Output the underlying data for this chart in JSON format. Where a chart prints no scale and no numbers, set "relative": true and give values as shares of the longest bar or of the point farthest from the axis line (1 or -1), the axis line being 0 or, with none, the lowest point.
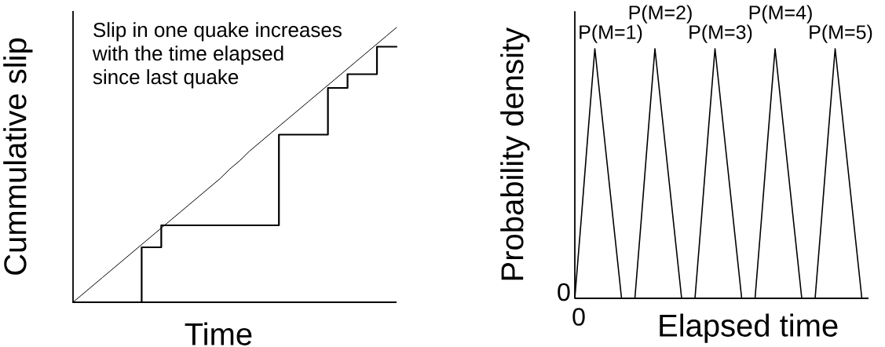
{
  "chart_data": [
    {
      "type": "line",
      "relative": true,
      "xlabel": "Time",
      "ylabel": "Cummulative slip",
      "annotations": [
        "Slip in one quake increases",
        "with the time elapsed",
        "since last quake"
      ],
      "categories": [
        null,
        null,
        null,
        null,
        null,
        null,
        null,
        null,
        null,
        null,
        null,
        null,
        null,
        null,
        null,
        null,
        null,
        null,
        null,
        null,
        null,
        null,
        null,
        null,
        null,
        null,
        null,
        null,
        null,
        null,
        null,
        null,
        null,
        null
      ],
      "series": [
        {
          "type": "step",
          "color": "#000000",
          "values": [
            0,
            0,
            0,
            0,
            0,
            0,
            0,
            0.2,
            0.2,
            0.28,
            0.28,
            0.28,
            0.28,
            0.28,
            0.28,
            0.28,
            0.28,
            0.28,
            0.28,
            0.28,
            0.28,
            0.61,
            0.61,
            0.61,
            0.61,
            0.61,
            0.78,
            0.78,
            0.83,
            0.83,
            0.83,
            0.93,
            0.93,
            0.93
          ]
        },
        {
          "type": "line",
          "color": "#000000",
          "values": [
            0,
            0.03,
            0.06,
            0.09,
            0.12,
            0.15,
            0.18,
            0.21,
            0.24,
            0.27,
            0.3,
            0.33,
            0.36,
            0.39,
            0.42,
            0.45,
            0.485,
            0.515,
            0.55,
            0.58,
            0.61,
            0.64,
            0.67,
            0.7,
            0.73,
            0.76,
            0.79,
            0.82,
            0.85,
            0.88,
            0.91,
            0.94,
            0.97,
            1
          ]
        }
      ]
    },
    {
      "type": "line",
      "relative": true,
      "xlabel": "Elapsed time",
      "ylabel": "Probability density",
      "annotations": [
        "0",
        "0"
      ],
      "categories": [
        null,
        null,
        null,
        null,
        null,
        null,
        null,
        null,
        null,
        null,
        null,
        null,
        null,
        null,
        null,
        null,
        null,
        null,
        null,
        null,
        null,
        null,
        null,
        null,
        null,
        null,
        null,
        null,
        null,
        null,
        null,
        null,
        null,
        null,
        null,
        null,
        null,
        null,
        null,
        null,
        null,
        null,
        null,
        null,
        null
      ],
      "series": [
        {
          "name": "P(M=1)",
          "color": "#000000",
          "values": [
            0,
            0.33,
            0.67,
            1,
            0.75,
            0.5,
            0.25,
            0,
            null,
            null,
            null,
            null,
            null,
            null,
            null,
            null,
            null,
            null,
            null,
            null,
            null,
            null,
            null,
            null,
            null,
            null,
            null,
            null,
            null,
            null,
            null,
            null,
            null,
            null,
            null,
            null,
            null,
            null,
            null,
            null,
            null,
            null,
            null,
            null,
            null
          ]
        },
        {
          "name": "P(M=2)",
          "color": "#000000",
          "values": [
            null,
            null,
            null,
            null,
            null,
            null,
            null,
            null,
            null,
            0,
            0.33,
            0.67,
            1,
            0.75,
            0.5,
            0.25,
            0,
            null,
            null,
            null,
            null,
            null,
            null,
            null,
            null,
            null,
            null,
            null,
            null,
            null,
            null,
            null,
            null,
            null,
            null,
            null,
            null,
            null,
            null,
            null,
            null,
            null,
            null,
            null,
            null
          ]
        },
        {
          "name": "P(M=3)",
          "color": "#000000",
          "values": [
            null,
            null,
            null,
            null,
            null,
            null,
            null,
            null,
            null,
            null,
            null,
            null,
            null,
            null,
            null,
            null,
            null,
            null,
            0,
            0.33,
            0.67,
            1,
            0.75,
            0.5,
            0.25,
            0,
            null,
            null,
            null,
            null,
            null,
            null,
            null,
            null,
            null,
            null,
            null,
            null,
            null,
            null,
            null,
            null,
            null,
            null,
            null
          ]
        },
        {
          "name": "P(M=4)",
          "color": "#000000",
          "values": [
            null,
            null,
            null,
            null,
            null,
            null,
            null,
            null,
            null,
            null,
            null,
            null,
            null,
            null,
            null,
            null,
            null,
            null,
            null,
            null,
            null,
            null,
            null,
            null,
            null,
            null,
            null,
            0,
            0.33,
            0.67,
            1,
            0.75,
            0.5,
            0.25,
            0,
            null,
            null,
            null,
            null,
            null,
            null,
            null,
            null,
            null,
            null
          ]
        },
        {
          "name": "P(M=5)",
          "color": "#000000",
          "values": [
            null,
            null,
            null,
            null,
            null,
            null,
            null,
            null,
            null,
            null,
            null,
            null,
            null,
            null,
            null,
            null,
            null,
            null,
            null,
            null,
            null,
            null,
            null,
            null,
            null,
            null,
            null,
            null,
            null,
            null,
            null,
            null,
            null,
            null,
            null,
            null,
            0,
            0.33,
            0.67,
            1,
            0.75,
            0.5,
            0.25,
            0,
            null
          ]
        }
      ]
    }
  ]
}
